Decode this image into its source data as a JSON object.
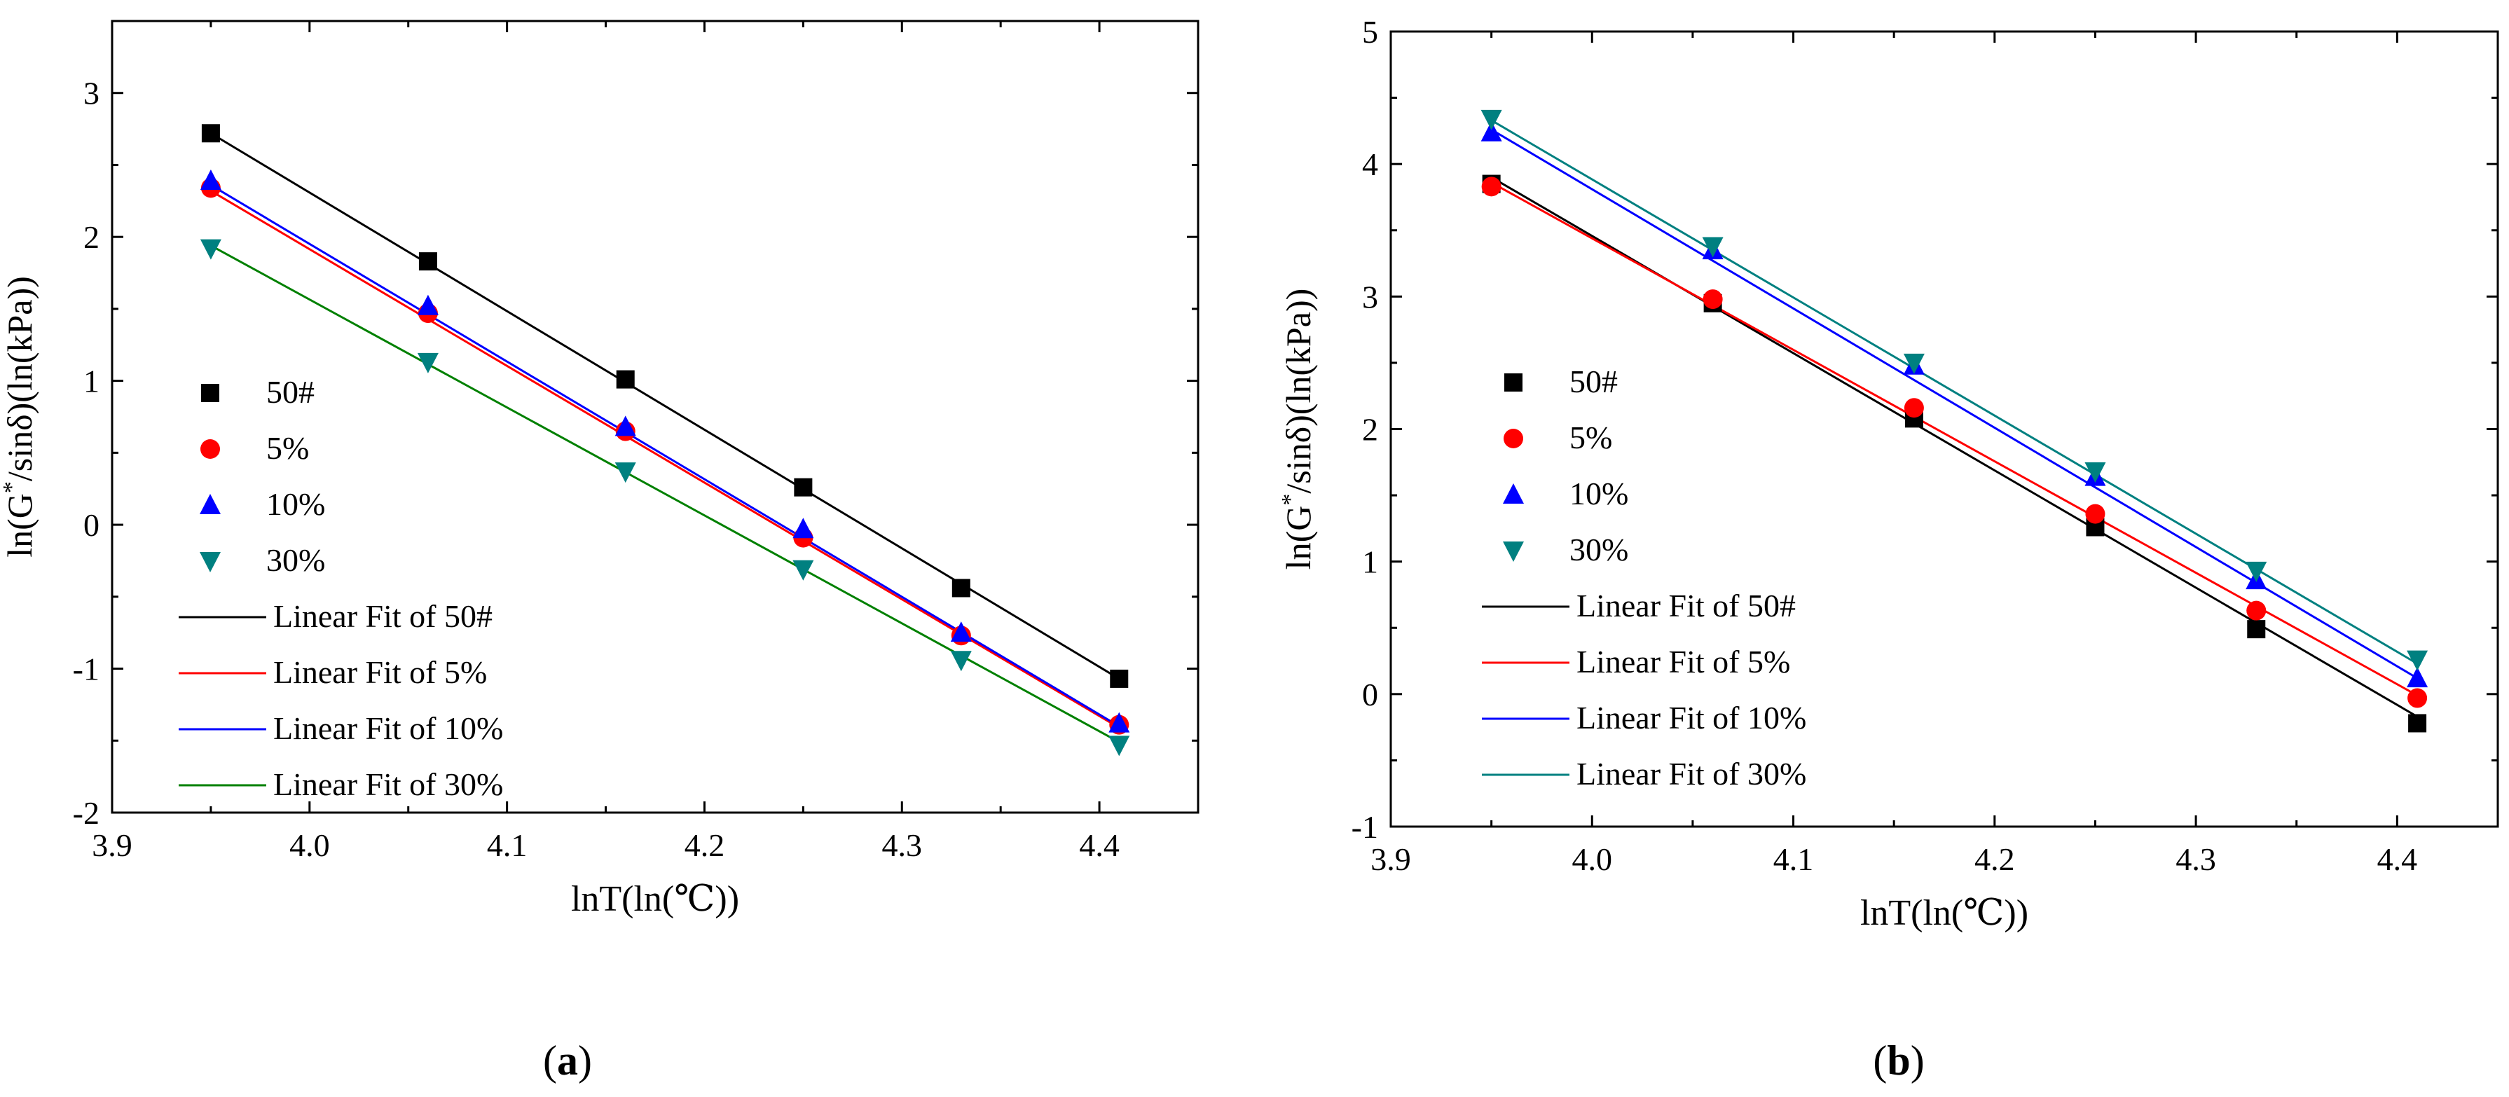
{
  "chart_data": [
    {
      "id": "a",
      "type": "scatter",
      "panel_label": "a",
      "xlabel": "lnT(ln(℃))",
      "ylabel": "ln(G*/sinδ)(ln(kPa))",
      "ylabel_parts": {
        "pre": "ln(G",
        "sup": "*",
        "post": "/sinδ)(ln(kPa))"
      },
      "xlim": [
        3.9,
        4.45
      ],
      "ylim": [
        -2,
        3.5
      ],
      "xticks": [
        3.9,
        4.0,
        4.1,
        4.2,
        4.3,
        4.4
      ],
      "xtick_labels": [
        "3.9",
        "4.0",
        "4.1",
        "4.2",
        "4.3",
        "4.4"
      ],
      "yticks": [
        -2,
        -1,
        0,
        1,
        2,
        3
      ],
      "ytick_labels": [
        "-2",
        "-1",
        "0",
        "1",
        "2",
        "3"
      ],
      "x": [
        3.95,
        4.06,
        4.16,
        4.25,
        4.33,
        4.41
      ],
      "series": [
        {
          "name": "50#",
          "marker": "square",
          "color": "#000000",
          "values": [
            2.72,
            1.83,
            1.01,
            0.26,
            -0.44,
            -1.07
          ],
          "fit_name": "Linear Fit of 50#",
          "fit_color": "#000000",
          "fit": [
            2.72,
            -1.07
          ]
        },
        {
          "name": "5%",
          "marker": "circle",
          "color": "#ff0000",
          "values": [
            2.34,
            1.47,
            0.65,
            -0.09,
            -0.77,
            -1.39
          ],
          "fit_name": "Linear Fit of 5%",
          "fit_color": "#ff0000",
          "fit": [
            2.32,
            -1.41
          ]
        },
        {
          "name": "10%",
          "marker": "triangle-up",
          "color": "#0000ff",
          "values": [
            2.39,
            1.52,
            0.68,
            -0.03,
            -0.75,
            -1.38
          ],
          "fit_name": "Linear Fit of 10%",
          "fit_color": "#0000ff",
          "fit": [
            2.36,
            -1.4
          ]
        },
        {
          "name": "30%",
          "marker": "triangle-down",
          "color": "#008080",
          "values": [
            1.92,
            1.13,
            0.37,
            -0.31,
            -0.94,
            -1.53
          ],
          "fit_name": "Linear Fit of 30%",
          "fit_color": "#008000",
          "fit": [
            1.94,
            -1.51
          ]
        }
      ]
    },
    {
      "id": "b",
      "type": "scatter",
      "panel_label": "b",
      "xlabel": "lnT(ln(℃))",
      "ylabel": "ln(G*/sinδ)(ln(kPa))",
      "ylabel_parts": {
        "pre": "ln(G",
        "sup": "*",
        "post": "/sinδ)(ln(kPa))"
      },
      "xlim": [
        3.9,
        4.45
      ],
      "ylim": [
        -1,
        5
      ],
      "xticks": [
        3.9,
        4.0,
        4.1,
        4.2,
        4.3,
        4.4
      ],
      "xtick_labels": [
        "3.9",
        "4.0",
        "4.1",
        "4.2",
        "4.3",
        "4.4"
      ],
      "yticks": [
        -1,
        0,
        1,
        2,
        3,
        4,
        5
      ],
      "ytick_labels": [
        "-1",
        "0",
        "1",
        "2",
        "3",
        "4",
        "5"
      ],
      "x": [
        3.95,
        4.06,
        4.16,
        4.25,
        4.33,
        4.41
      ],
      "series": [
        {
          "name": "50#",
          "marker": "square",
          "color": "#000000",
          "values": [
            3.85,
            2.95,
            2.08,
            1.26,
            0.49,
            -0.22
          ],
          "fit_name": "Linear Fit of 50#",
          "fit_color": "#000000",
          "fit": [
            3.9,
            -0.17
          ]
        },
        {
          "name": "5%",
          "marker": "circle",
          "color": "#ff0000",
          "values": [
            3.83,
            2.98,
            2.16,
            1.36,
            0.63,
            -0.03
          ],
          "fit_name": "Linear Fit of 5%",
          "fit_color": "#ff0000",
          "fit": [
            3.86,
            -0.01
          ]
        },
        {
          "name": "10%",
          "marker": "triangle-up",
          "color": "#0000ff",
          "values": [
            4.24,
            3.35,
            2.48,
            1.64,
            0.86,
            0.12
          ],
          "fit_name": "Linear Fit of 10%",
          "fit_color": "#0000ff",
          "fit": [
            4.26,
            0.12
          ]
        },
        {
          "name": "30%",
          "marker": "triangle-down",
          "color": "#008080",
          "values": [
            4.34,
            3.38,
            2.5,
            1.68,
            0.93,
            0.26
          ],
          "fit_name": "Linear Fit of 30%",
          "fit_color": "#008080",
          "fit": [
            4.33,
            0.23
          ]
        }
      ]
    }
  ]
}
